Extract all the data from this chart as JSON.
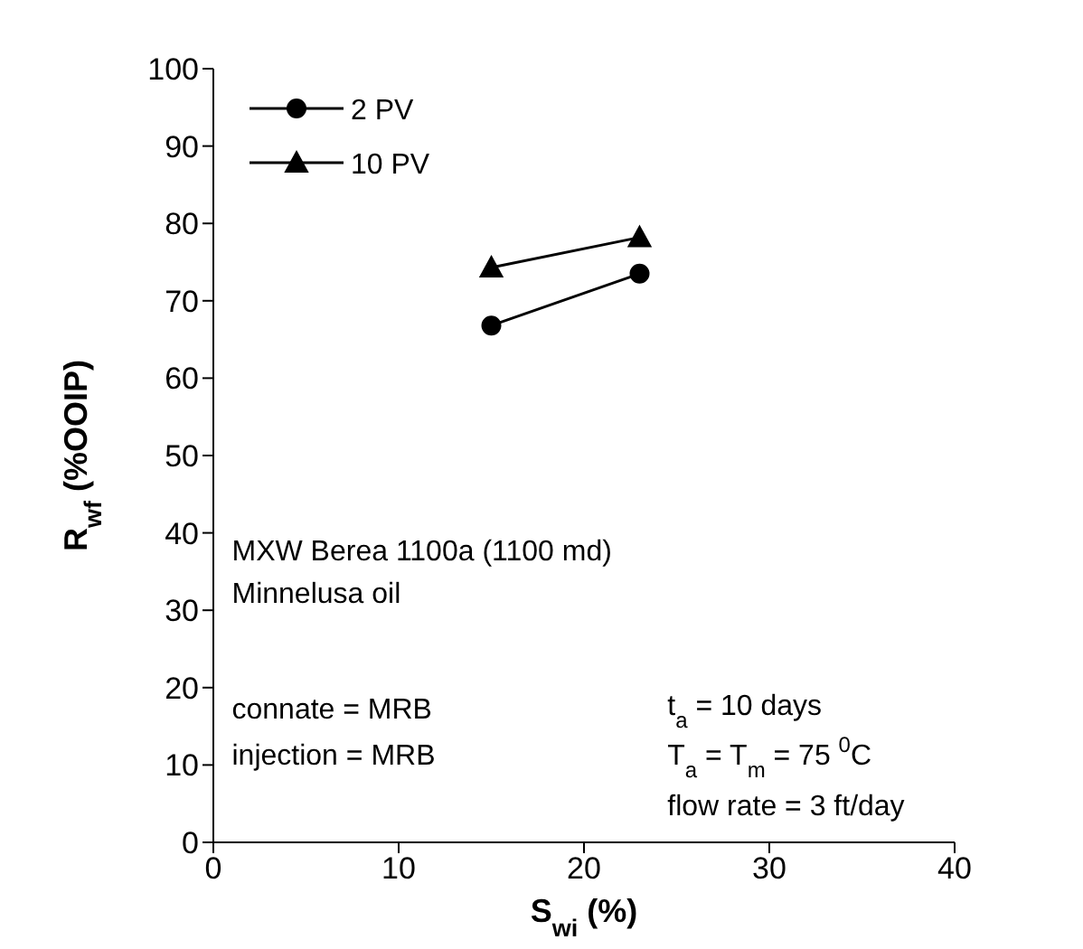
{
  "chart_data": {
    "type": "line",
    "xlabel": "S$_{wi}$ (%)",
    "ylabel": "R$_{wf}$ (%OOIP)",
    "x": [
      15,
      23
    ],
    "series": [
      {
        "name": "2 PV",
        "color": "#000000",
        "marker": "circle",
        "values": [
          66.8,
          73.5
        ]
      },
      {
        "name": "10 PV",
        "color": "#000000",
        "marker": "triangle",
        "values": [
          74.3,
          78.2
        ]
      }
    ],
    "xlim": [
      0,
      40
    ],
    "xticks": [
      0,
      10,
      20,
      30,
      40
    ],
    "ylim": [
      0,
      100
    ],
    "yticks": [
      0,
      10,
      20,
      30,
      40,
      50,
      60,
      70,
      80,
      90,
      100
    ],
    "grid": false,
    "legend": "top left",
    "annotations": [
      "MXW Berea 1100a (1100 md)",
      "Minnelusa oil",
      "connate = MRB",
      "injection = MRB",
      "t$_{a}$ = 10 days",
      "T$_{a}$ = T$_{m}$ = 75 $^{0}$C",
      "flow rate = 3 ft/day"
    ]
  }
}
